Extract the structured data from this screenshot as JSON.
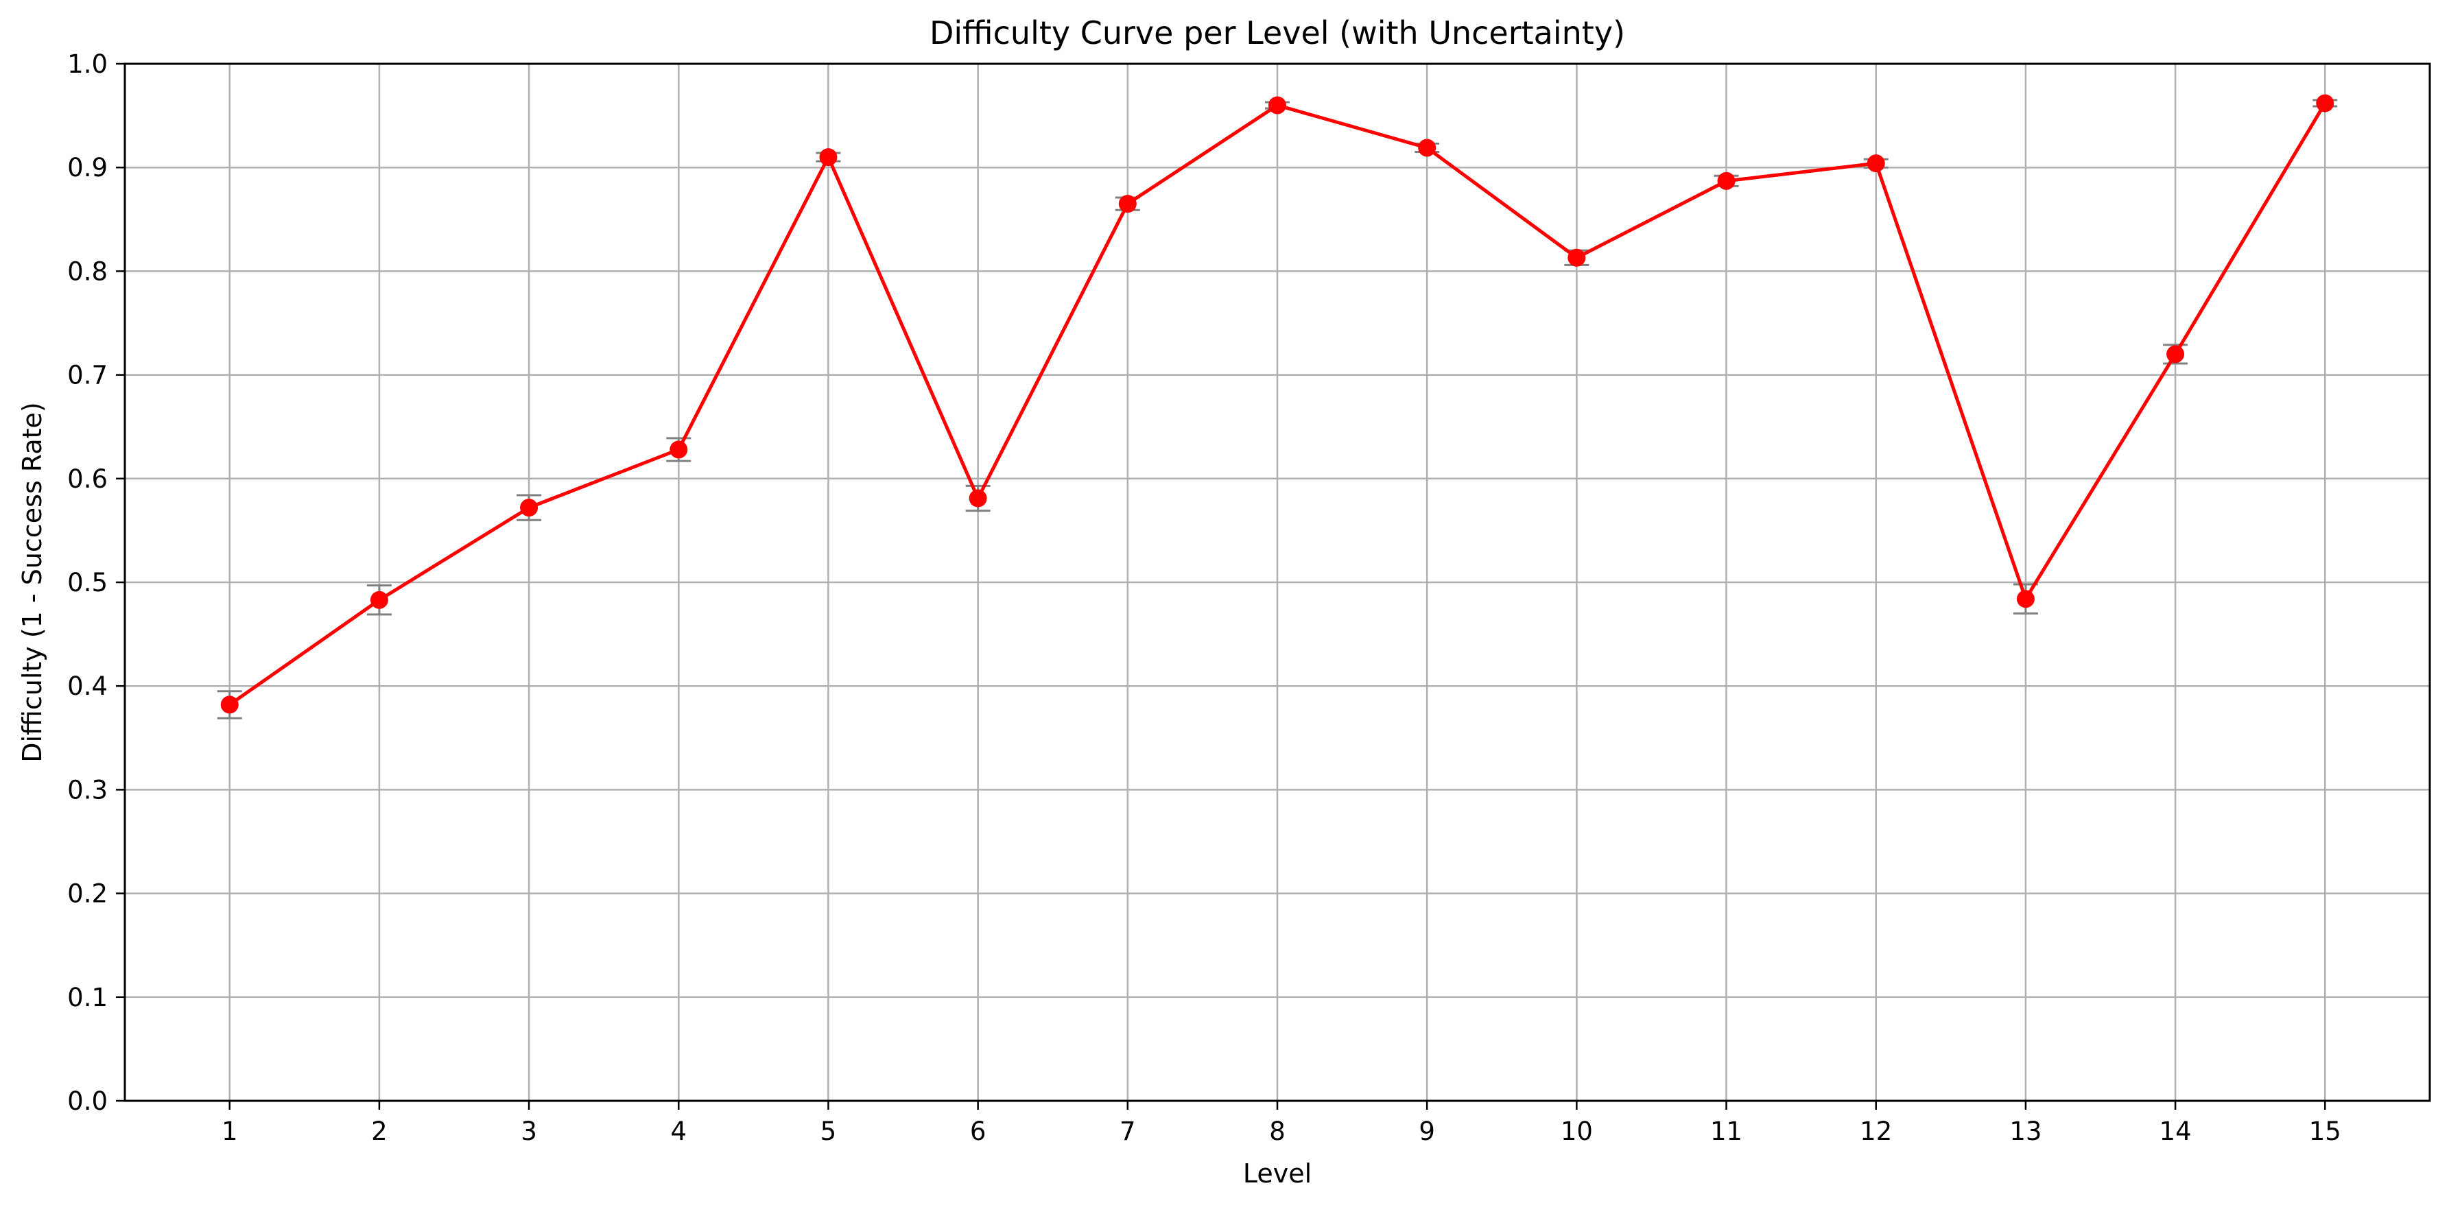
{
  "chart_data": {
    "type": "line",
    "title": "Difficulty Curve per Level (with Uncertainty)",
    "xlabel": "Level",
    "ylabel": "Difficulty (1 - Success Rate)",
    "x": [
      1,
      2,
      3,
      4,
      5,
      6,
      7,
      8,
      9,
      10,
      11,
      12,
      13,
      14,
      15
    ],
    "series": [
      {
        "values": [
          0.382,
          0.483,
          0.572,
          0.628,
          0.91,
          0.581,
          0.865,
          0.96,
          0.919,
          0.813,
          0.887,
          0.904,
          0.484,
          0.72,
          0.962
        ],
        "errors": [
          0.013,
          0.014,
          0.012,
          0.011,
          0.004,
          0.012,
          0.006,
          0.003,
          0.004,
          0.007,
          0.005,
          0.004,
          0.014,
          0.009,
          0.003
        ],
        "color": "#ff0000",
        "error_color": "#808080"
      }
    ],
    "xlim": [
      0.3,
      15.7
    ],
    "ylim": [
      0.0,
      1.0
    ],
    "x_ticks": [
      "1",
      "2",
      "3",
      "4",
      "5",
      "6",
      "7",
      "8",
      "9",
      "10",
      "11",
      "12",
      "13",
      "14",
      "15"
    ],
    "y_ticks": [
      "0.0",
      "0.1",
      "0.2",
      "0.3",
      "0.4",
      "0.5",
      "0.6",
      "0.7",
      "0.8",
      "0.9",
      "1.0"
    ],
    "grid": true,
    "grid_color": "#b0b0b0"
  }
}
